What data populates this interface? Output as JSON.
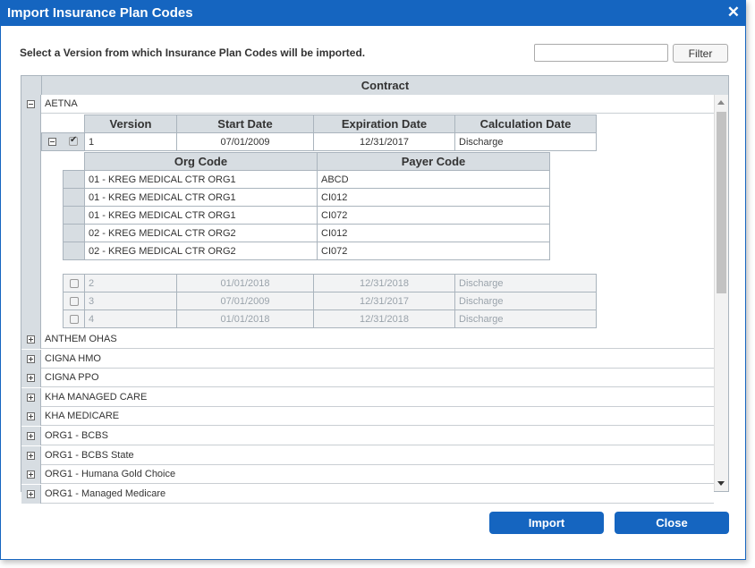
{
  "dialog": {
    "title": "Import Insurance Plan Codes",
    "close_icon": "✕"
  },
  "instruction": "Select a Version from which Insurance Plan Codes will be imported.",
  "filter": {
    "value": "",
    "placeholder": "",
    "button_label": "Filter"
  },
  "grid": {
    "header": "Contract",
    "expanded_contract": "AETNA",
    "version_columns": [
      "Version",
      "Start Date",
      "Expiration Date",
      "Calculation Date"
    ],
    "expanded_version": {
      "checked": true,
      "version": "1",
      "start": "07/01/2009",
      "expiration": "12/31/2017",
      "calculation": "Discharge"
    },
    "code_columns": [
      "Org Code",
      "Payer Code"
    ],
    "codes": [
      {
        "org": "01 - KREG MEDICAL CTR ORG1",
        "payer": "ABCD"
      },
      {
        "org": "01 - KREG MEDICAL CTR ORG1",
        "payer": "CI012"
      },
      {
        "org": "01 - KREG MEDICAL CTR ORG1",
        "payer": "CI072"
      },
      {
        "org": "02 - KREG MEDICAL CTR ORG2",
        "payer": "CI012"
      },
      {
        "org": "02 - KREG MEDICAL CTR ORG2",
        "payer": "CI072"
      }
    ],
    "other_versions": [
      {
        "version": "2",
        "start": "01/01/2018",
        "expiration": "12/31/2018",
        "calculation": "Discharge"
      },
      {
        "version": "3",
        "start": "07/01/2009",
        "expiration": "12/31/2017",
        "calculation": "Discharge"
      },
      {
        "version": "4",
        "start": "01/01/2018",
        "expiration": "12/31/2018",
        "calculation": "Discharge"
      }
    ],
    "collapsed_contracts": [
      "ANTHEM OHAS",
      "CIGNA HMO",
      "CIGNA PPO",
      "KHA MANAGED CARE",
      "KHA MEDICARE",
      "ORG1 - BCBS",
      "ORG1 - BCBS State",
      "ORG1 - Humana Gold Choice",
      "ORG1 - Managed Medicare"
    ]
  },
  "buttons": {
    "import": "Import",
    "close": "Close"
  },
  "colors": {
    "accent": "#1565c0",
    "header_bg": "#d7dde2",
    "border": "#aab4bd"
  }
}
